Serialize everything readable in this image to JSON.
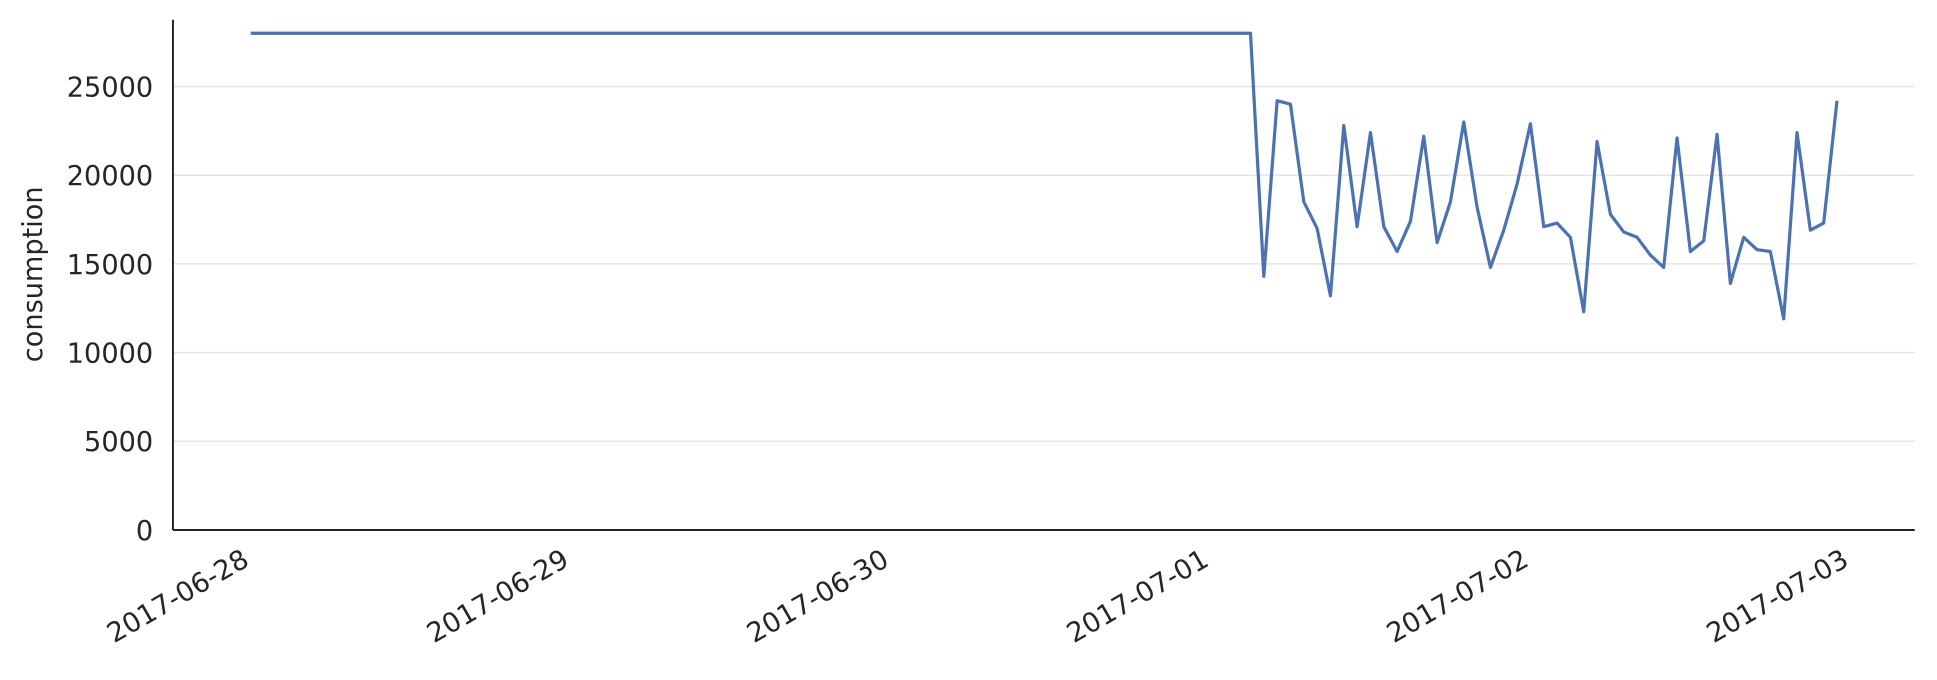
{
  "chart_data": {
    "type": "line",
    "y_label": "consumption",
    "x": [
      "2017-06-28T00:00",
      "2017-07-01T03:00",
      "2017-07-01T04:00",
      "2017-07-01T05:00",
      "2017-07-01T06:00",
      "2017-07-01T07:00",
      "2017-07-01T08:00",
      "2017-07-01T09:00",
      "2017-07-01T10:00",
      "2017-07-01T11:00",
      "2017-07-01T12:00",
      "2017-07-01T13:00",
      "2017-07-01T14:00",
      "2017-07-01T15:00",
      "2017-07-01T16:00",
      "2017-07-01T17:00",
      "2017-07-01T18:00",
      "2017-07-01T19:00",
      "2017-07-01T20:00",
      "2017-07-01T21:00",
      "2017-07-01T22:00",
      "2017-07-01T23:00",
      "2017-07-02T00:00",
      "2017-07-02T01:00",
      "2017-07-02T02:00",
      "2017-07-02T03:00",
      "2017-07-02T04:00",
      "2017-07-02T05:00",
      "2017-07-02T06:00",
      "2017-07-02T07:00",
      "2017-07-02T08:00",
      "2017-07-02T09:00",
      "2017-07-02T10:00",
      "2017-07-02T11:00",
      "2017-07-02T12:00",
      "2017-07-02T13:00",
      "2017-07-02T14:00",
      "2017-07-02T15:00",
      "2017-07-02T16:00",
      "2017-07-02T17:00",
      "2017-07-02T18:00",
      "2017-07-02T19:00",
      "2017-07-02T20:00",
      "2017-07-02T21:00",
      "2017-07-02T22:00",
      "2017-07-02T23:00"
    ],
    "values": [
      28000,
      28000,
      14300,
      24200,
      24000,
      18500,
      17000,
      13200,
      22800,
      17100,
      22400,
      17100,
      15700,
      17400,
      22200,
      16200,
      18500,
      23000,
      18200,
      14800,
      16900,
      19500,
      22900,
      17100,
      17300,
      16500,
      12300,
      21900,
      17800,
      16800,
      16500,
      15500,
      14800,
      22100,
      15700,
      16300,
      22300,
      13900,
      16500,
      15800,
      15700,
      11900,
      22400,
      16900,
      17300,
      24200
    ],
    "color": "#4c72b0",
    "xlim": [
      "2017-06-27T18:10",
      "2017-07-03T04:50"
    ],
    "xticks": [
      "2017-06-28",
      "2017-06-29",
      "2017-06-30",
      "2017-07-01",
      "2017-07-02",
      "2017-07-03"
    ],
    "ylim": [
      0,
      28760
    ],
    "yticks": [
      0,
      5000,
      10000,
      15000,
      20000,
      25000
    ],
    "grid": true
  }
}
